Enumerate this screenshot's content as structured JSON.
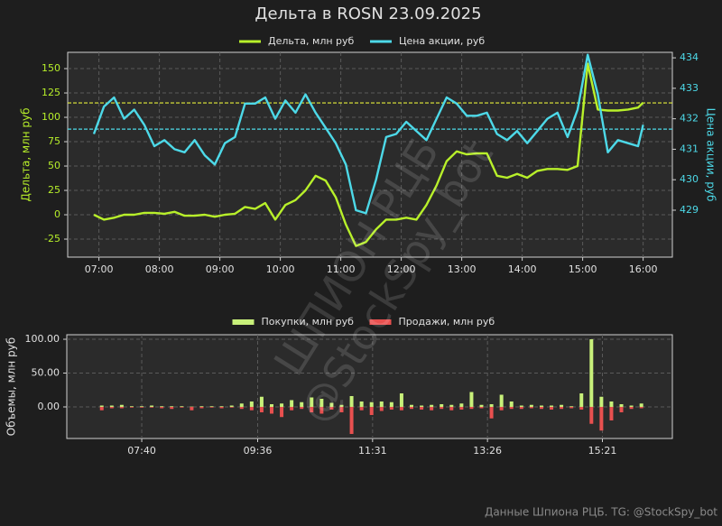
{
  "title": "Дельта в ROSN 23.09.2025",
  "footer": "Данные Шпиона РЦБ. TG: @StockSpy_bot",
  "watermark": [
    "ШПИОН РЦБ",
    "@StockSpy_bot"
  ],
  "chart_data": [
    {
      "type": "line",
      "y_label": "Дельта, млн руб",
      "y2_label": "Цена акции, руб",
      "legend": "top",
      "grid": true,
      "x": [
        "06:55",
        "07:05",
        "07:15",
        "07:25",
        "07:35",
        "07:45",
        "07:55",
        "08:05",
        "08:15",
        "08:25",
        "08:35",
        "08:45",
        "08:55",
        "09:05",
        "09:15",
        "09:25",
        "09:35",
        "09:45",
        "09:55",
        "10:05",
        "10:15",
        "10:25",
        "10:35",
        "10:45",
        "10:55",
        "11:05",
        "11:15",
        "11:25",
        "11:35",
        "11:45",
        "11:55",
        "12:05",
        "12:15",
        "12:25",
        "12:35",
        "12:45",
        "12:55",
        "13:05",
        "13:15",
        "13:25",
        "13:35",
        "13:45",
        "13:55",
        "14:05",
        "14:15",
        "14:25",
        "14:35",
        "14:45",
        "14:55",
        "15:05",
        "15:15",
        "15:25",
        "15:35",
        "15:45",
        "15:55",
        "16:00"
      ],
      "xlim": [
        "06:29",
        "16:29"
      ],
      "xticks": [
        "07:00",
        "08:00",
        "09:00",
        "10:00",
        "11:00",
        "12:00",
        "13:00",
        "14:00",
        "15:00",
        "16:00"
      ],
      "ylim": [
        -43.5,
        166.7
      ],
      "yticks": [
        -25,
        0,
        25,
        50,
        75,
        100,
        125,
        150
      ],
      "y2lim": [
        427.46,
        434.18
      ],
      "y2ticks": [
        429,
        430,
        431,
        432,
        433,
        434
      ],
      "hlines": [
        {
          "value": 114.8,
          "color": "#e6ee3a",
          "axis": "y"
        },
        {
          "value": 431.66,
          "color": "#4dd9e8",
          "axis": "y2"
        }
      ],
      "series": [
        {
          "name": "Дельта, млн руб",
          "color": "#b8f02a",
          "values": [
            0,
            -5,
            -3,
            0,
            0,
            2,
            2,
            1,
            3,
            -1,
            -1,
            0,
            -2,
            0,
            1,
            8,
            6,
            12,
            -5,
            10,
            15,
            25,
            40,
            35,
            18,
            -10,
            -32,
            -28,
            -15,
            -5,
            -5,
            -3,
            -5,
            10,
            30,
            55,
            65,
            62,
            63,
            63,
            40,
            38,
            42,
            38,
            45,
            47,
            47,
            46,
            50,
            155,
            108,
            107,
            107,
            108,
            110,
            115
          ]
        },
        {
          "name": "Цена акции, руб",
          "color": "#4dd9e8",
          "axis": "y2",
          "values": [
            431.5,
            432.4,
            432.7,
            432.0,
            432.3,
            431.8,
            431.1,
            431.3,
            431.0,
            430.9,
            431.3,
            430.8,
            430.5,
            431.2,
            431.4,
            432.5,
            432.5,
            432.7,
            432.0,
            432.6,
            432.2,
            432.8,
            432.2,
            431.7,
            431.2,
            430.5,
            429.0,
            428.9,
            430.0,
            431.4,
            431.5,
            431.9,
            431.6,
            431.3,
            432.0,
            432.7,
            432.5,
            432.1,
            432.1,
            432.2,
            431.5,
            431.3,
            431.6,
            431.2,
            431.6,
            432.0,
            432.2,
            431.4,
            432.3,
            434.1,
            432.8,
            430.9,
            431.3,
            431.2,
            431.1,
            431.8
          ]
        }
      ]
    },
    {
      "type": "bar",
      "y_label": "Объемы, млн руб",
      "legend": "top",
      "grid": true,
      "x": [
        "07:00",
        "07:10",
        "07:20",
        "07:30",
        "07:40",
        "07:50",
        "08:00",
        "08:10",
        "08:20",
        "08:30",
        "08:40",
        "08:50",
        "09:00",
        "09:10",
        "09:20",
        "09:30",
        "09:40",
        "09:50",
        "10:00",
        "10:10",
        "10:20",
        "10:30",
        "10:40",
        "10:50",
        "11:00",
        "11:10",
        "11:20",
        "11:30",
        "11:40",
        "11:50",
        "12:00",
        "12:10",
        "12:20",
        "12:30",
        "12:40",
        "12:50",
        "13:00",
        "13:10",
        "13:20",
        "13:30",
        "13:40",
        "13:50",
        "14:00",
        "14:10",
        "14:20",
        "14:30",
        "14:40",
        "14:50",
        "15:00",
        "15:10",
        "15:20",
        "15:30",
        "15:40",
        "15:50",
        "16:00"
      ],
      "xlim": [
        "06:25",
        "16:31"
      ],
      "xticks": [
        "07:40",
        "09:36",
        "11:31",
        "13:26",
        "15:21"
      ],
      "ylim": [
        -46.7,
        106.7
      ],
      "yticks": [
        {
          "value": 0,
          "label": "0.00"
        },
        {
          "value": 50,
          "label": "50.00"
        },
        {
          "value": 100,
          "label": "100.00"
        }
      ],
      "series": [
        {
          "name": "Покупки, млн руб",
          "color": "#c8f07a",
          "values": [
            2,
            2,
            3,
            1,
            1,
            2,
            1,
            1,
            1,
            0.5,
            1,
            1,
            1,
            2,
            5,
            8,
            15,
            4,
            5,
            10,
            7,
            14,
            12,
            6,
            3,
            16,
            8,
            7,
            8,
            7,
            20,
            3,
            2,
            3,
            4,
            3,
            5,
            22,
            3,
            4,
            18,
            8,
            2,
            3,
            2,
            2,
            3,
            1,
            20,
            100,
            15,
            8,
            4,
            2,
            5
          ]
        },
        {
          "name": "Продажи, млн руб",
          "color": "#e8504f",
          "values": [
            -5,
            -2,
            -2,
            -1,
            -1,
            -1,
            -2,
            -3,
            -1,
            -5,
            -2,
            -1,
            -2,
            -1,
            -3,
            -5,
            -8,
            -10,
            -15,
            -5,
            -3,
            -8,
            -10,
            -4,
            -8,
            -40,
            -5,
            -12,
            -6,
            -4,
            -5,
            -3,
            -4,
            -5,
            -3,
            -5,
            -4,
            -3,
            -2,
            -17,
            -5,
            -3,
            -3,
            -2,
            -3,
            -4,
            -3,
            -2,
            -4,
            -25,
            -35,
            -20,
            -8,
            -3,
            -2
          ]
        }
      ]
    }
  ]
}
